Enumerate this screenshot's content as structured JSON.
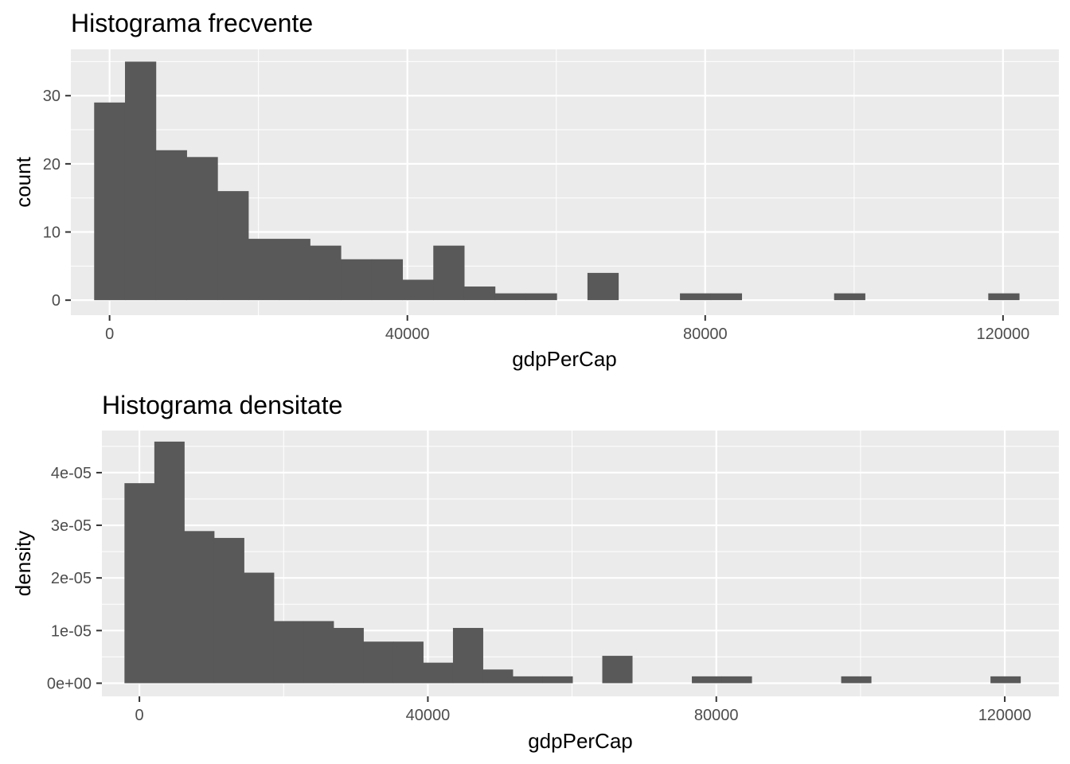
{
  "chart_data": [
    {
      "type": "bar",
      "title": "Histograma frecvente",
      "xlabel": "gdpPerCap",
      "ylabel": "count",
      "xlim": [
        -5200,
        127500
      ],
      "ylim": [
        -2.2,
        36.8
      ],
      "x_ticks": [
        0,
        40000,
        80000,
        120000
      ],
      "x_tick_labels": [
        "0",
        "40000",
        "80000",
        "120000"
      ],
      "y_ticks": [
        0,
        10,
        20,
        30
      ],
      "y_tick_labels": [
        "0",
        "10",
        "20",
        "30"
      ],
      "bin_width": 4141,
      "bin_starts": [
        -2070,
        2071,
        6212,
        10353,
        14494,
        18635,
        22776,
        26917,
        31058,
        35199,
        39340,
        43481,
        47622,
        51763,
        55904,
        60045,
        64186,
        68327,
        72468,
        76609,
        80750,
        84891,
        89032,
        93173,
        97314,
        101455,
        105596,
        109737,
        113878,
        118019
      ],
      "values": [
        29,
        35,
        22,
        21,
        16,
        9,
        9,
        8,
        6,
        6,
        3,
        8,
        2,
        1,
        1,
        0,
        4,
        0,
        0,
        1,
        1,
        0,
        0,
        0,
        1,
        0,
        0,
        0,
        0,
        1
      ],
      "grid": true,
      "colors": {
        "bar": "#595959",
        "panel": "#ebebeb",
        "grid": "#ffffff"
      }
    },
    {
      "type": "bar",
      "title": "Histograma densitate",
      "xlabel": "gdpPerCap",
      "ylabel": "density",
      "xlim": [
        -5200,
        127500
      ],
      "ylim": [
        -2.5e-06,
        4.8e-05
      ],
      "x_ticks": [
        0,
        40000,
        80000,
        120000
      ],
      "x_tick_labels": [
        "0",
        "40000",
        "80000",
        "120000"
      ],
      "y_ticks": [
        0,
        1e-05,
        2e-05,
        3e-05,
        4e-05
      ],
      "y_tick_labels": [
        "0e+00",
        "1e-05",
        "2e-05",
        "3e-05",
        "4e-05"
      ],
      "bin_width": 4141,
      "bin_starts": [
        -2070,
        2071,
        6212,
        10353,
        14494,
        18635,
        22776,
        26917,
        31058,
        35199,
        39340,
        43481,
        47622,
        51763,
        55904,
        60045,
        64186,
        68327,
        72468,
        76609,
        80750,
        84891,
        89032,
        93173,
        97314,
        101455,
        105596,
        109737,
        113878,
        118019
      ],
      "values": [
        3.8e-05,
        4.59e-05,
        2.89e-05,
        2.76e-05,
        2.1e-05,
        1.18e-05,
        1.18e-05,
        1.05e-05,
        7.9e-06,
        7.9e-06,
        3.9e-06,
        1.05e-05,
        2.6e-06,
        1.3e-06,
        1.3e-06,
        0,
        5.2e-06,
        0,
        0,
        1.3e-06,
        1.3e-06,
        0,
        0,
        0,
        1.3e-06,
        0,
        0,
        0,
        0,
        1.3e-06
      ],
      "grid": true,
      "colors": {
        "bar": "#595959",
        "panel": "#ebebeb",
        "grid": "#ffffff"
      }
    }
  ]
}
